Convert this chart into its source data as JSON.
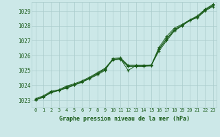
{
  "bg_color": "#cce8e8",
  "grid_color": "#aacccc",
  "line_color": "#1a5c1a",
  "marker_color": "#1a5c1a",
  "title": "Graphe pression niveau de la mer (hPa)",
  "title_color": "#1a5c1a",
  "xlim": [
    -0.5,
    23.5
  ],
  "ylim": [
    1022.5,
    1029.6
  ],
  "yticks": [
    1023,
    1024,
    1025,
    1026,
    1027,
    1028,
    1029
  ],
  "xticks": [
    0,
    1,
    2,
    3,
    4,
    5,
    6,
    7,
    8,
    9,
    10,
    11,
    12,
    13,
    14,
    15,
    16,
    17,
    18,
    19,
    20,
    21,
    22,
    23
  ],
  "series": [
    {
      "x": [
        0,
        1,
        2,
        3,
        4,
        5,
        6,
        7,
        8,
        9,
        10,
        11,
        12,
        13,
        14,
        15,
        16,
        17,
        18,
        19,
        20,
        21,
        22,
        23
      ],
      "y": [
        1023.0,
        1023.2,
        1023.5,
        1023.65,
        1023.8,
        1024.0,
        1024.2,
        1024.45,
        1024.7,
        1025.0,
        1025.8,
        1025.85,
        1025.35,
        1025.35,
        1025.35,
        1025.35,
        1026.3,
        1027.0,
        1027.65,
        1028.0,
        1028.35,
        1028.55,
        1029.0,
        1029.3
      ]
    },
    {
      "x": [
        0,
        1,
        2,
        3,
        4,
        5,
        6,
        7,
        8,
        9,
        10,
        11,
        12,
        13,
        14,
        15,
        16,
        17,
        18,
        19,
        20,
        21,
        22,
        23
      ],
      "y": [
        1023.05,
        1023.25,
        1023.55,
        1023.65,
        1023.9,
        1024.05,
        1024.25,
        1024.5,
        1024.8,
        1025.1,
        1025.7,
        1025.75,
        1025.25,
        1025.25,
        1025.25,
        1025.3,
        1026.45,
        1027.15,
        1027.75,
        1028.05,
        1028.38,
        1028.62,
        1029.08,
        1029.38
      ]
    },
    {
      "x": [
        0,
        1,
        2,
        3,
        4,
        5,
        6,
        7,
        8,
        9,
        10,
        11,
        12,
        13,
        14,
        15,
        16,
        17,
        18,
        19,
        20,
        21,
        22,
        23
      ],
      "y": [
        1023.1,
        1023.3,
        1023.6,
        1023.7,
        1023.95,
        1024.1,
        1024.3,
        1024.55,
        1024.85,
        1025.15,
        1025.75,
        1025.8,
        1025.3,
        1025.3,
        1025.3,
        1025.35,
        1026.55,
        1027.3,
        1027.85,
        1028.1,
        1028.4,
        1028.68,
        1029.12,
        1029.45
      ]
    },
    {
      "x": [
        0,
        1,
        2,
        3,
        4,
        5,
        6,
        7,
        8,
        9,
        10,
        11,
        12,
        13,
        14,
        15,
        16,
        17,
        18,
        19,
        20,
        21,
        22,
        23
      ],
      "y": [
        1023.02,
        1023.22,
        1023.52,
        1023.67,
        1023.85,
        1024.02,
        1024.22,
        1024.47,
        1024.77,
        1025.05,
        1025.72,
        1025.78,
        1025.0,
        1025.32,
        1025.32,
        1025.35,
        1026.4,
        1027.1,
        1027.7,
        1028.02,
        1028.37,
        1028.6,
        1029.05,
        1029.35
      ]
    }
  ]
}
